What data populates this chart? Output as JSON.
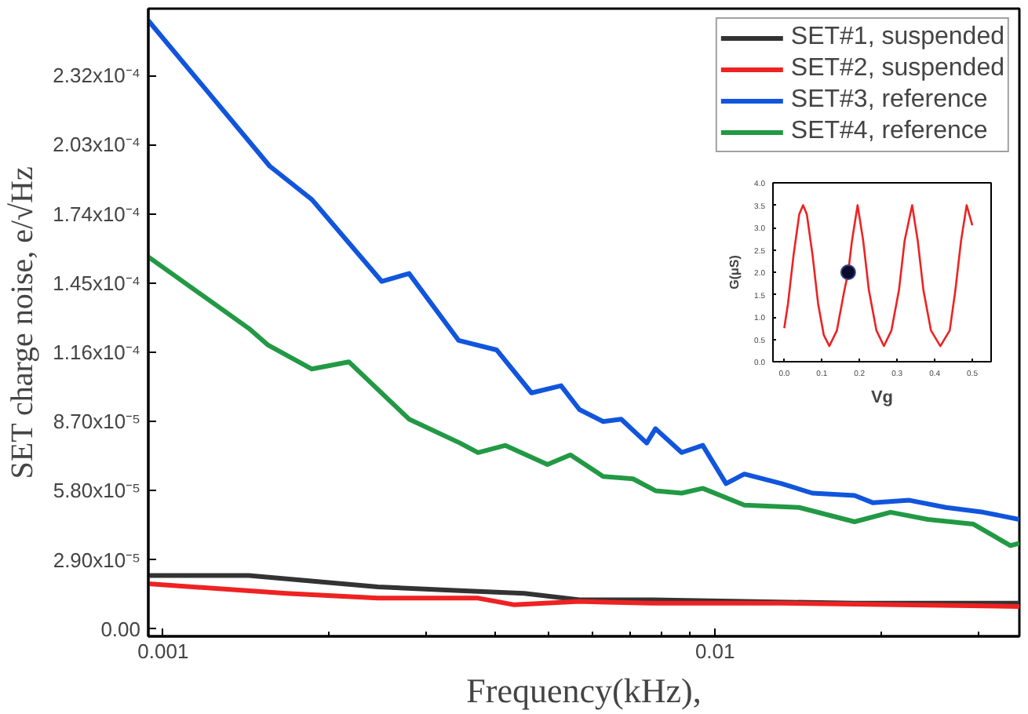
{
  "chart_data": [
    {
      "type": "line",
      "xlabel": "Frequency(kHz),",
      "ylabel": "SET charge noise, e/√Hz",
      "log": "x",
      "xlim": [
        0.00094,
        0.0356
      ],
      "ylim": [
        -3e-06,
        0.00026
      ],
      "xticks": [
        0.001,
        0.01
      ],
      "yticks": [
        {
          "value": 0,
          "label": "0.00"
        },
        {
          "value": 2.9e-05,
          "label": "2.90x10⁻⁵"
        },
        {
          "value": 5.8e-05,
          "label": "5.80x10⁻⁵"
        },
        {
          "value": 8.7e-05,
          "label": "8.70x10⁻⁵"
        },
        {
          "value": 0.000116,
          "label": "1.16x10⁻⁴"
        },
        {
          "value": 0.000145,
          "label": "1.45x10⁻⁴"
        },
        {
          "value": 0.000174,
          "label": "1.74x10⁻⁴"
        },
        {
          "value": 0.000203,
          "label": "2.03x10⁻⁴"
        },
        {
          "value": 0.000232,
          "label": "2.32x10⁻⁴"
        }
      ],
      "grid": false,
      "legend": "top right",
      "marker": "none",
      "line_style": "solid",
      "series": [
        {
          "name": "SET#1, suspended",
          "color": "#333333",
          "x": [
            0.00094,
            0.00143,
            0.00245,
            0.00332,
            0.00451,
            0.00568,
            0.0077,
            0.0113,
            0.0179,
            0.0356
          ],
          "values": [
            2.25e-05,
            2.25e-05,
            1.77e-05,
            1.63e-05,
            1.5e-05,
            1.23e-05,
            1.23e-05,
            1.16e-05,
            1.09e-05,
            1.09e-05
          ]
        },
        {
          "name": "SET#2, suspended",
          "color": "#ee2222",
          "x": [
            0.00094,
            0.00167,
            0.00245,
            0.00372,
            0.00433,
            0.00568,
            0.0077,
            0.0132,
            0.0356
          ],
          "values": [
            1.9e-05,
            1.5e-05,
            1.3e-05,
            1.3e-05,
            1.02e-05,
            1.16e-05,
            1.09e-05,
            1.09e-05,
            9.5e-06
          ]
        },
        {
          "name": "SET#3, reference",
          "color": "#1155dd",
          "x": [
            0.00094,
            0.00156,
            0.00186,
            0.00249,
            0.00279,
            0.00343,
            0.00402,
            0.00465,
            0.00526,
            0.00568,
            0.00627,
            0.00676,
            0.00752,
            0.0078,
            0.0087,
            0.0095,
            0.01047,
            0.0113,
            0.0132,
            0.015,
            0.0179,
            0.0193,
            0.0225,
            0.0262,
            0.0306,
            0.0356
          ],
          "values": [
            0.000255,
            0.000194,
            0.00018,
            0.0001457,
            0.000149,
            0.000121,
            0.000117,
            9.9e-05,
            0.000102,
            9.2e-05,
            8.7e-05,
            8.8e-05,
            7.8e-05,
            8.4e-05,
            7.4e-05,
            7.7e-05,
            6.1e-05,
            6.5e-05,
            6.1e-05,
            5.7e-05,
            5.6e-05,
            5.3e-05,
            5.4e-05,
            5.1e-05,
            4.9e-05,
            4.6e-05
          ]
        },
        {
          "name": "SET#4, reference",
          "color": "#229944",
          "x": [
            0.00094,
            0.00143,
            0.00155,
            0.00186,
            0.00217,
            0.00279,
            0.00345,
            0.00372,
            0.00417,
            0.00497,
            0.00547,
            0.00627,
            0.0071,
            0.0078,
            0.0087,
            0.0095,
            0.0113,
            0.0142,
            0.0179,
            0.0208,
            0.0243,
            0.0294,
            0.0343,
            0.0356
          ],
          "values": [
            0.000156,
            0.000126,
            0.000119,
            0.000109,
            0.000112,
            8.8e-05,
            7.8e-05,
            7.4e-05,
            7.7e-05,
            6.9e-05,
            7.3e-05,
            6.4e-05,
            6.3e-05,
            5.8e-05,
            5.7e-05,
            5.9e-05,
            5.2e-05,
            5.1e-05,
            4.5e-05,
            4.9e-05,
            4.6e-05,
            4.4e-05,
            3.5e-05,
            3.6e-05
          ]
        }
      ]
    },
    {
      "type": "line",
      "xlabel": "Vg",
      "ylabel": "G(μS)",
      "xlim": [
        -0.03,
        0.55
      ],
      "ylim": [
        0,
        4
      ],
      "xticks": [
        {
          "value": 0,
          "label": "0.0"
        },
        0.1,
        0.2,
        0.3,
        0.4,
        0.5
      ],
      "yticks": [
        {
          "value": 0,
          "label": "0.0"
        },
        0.5,
        {
          "value": 1,
          "label": "1.0"
        },
        1.5,
        {
          "value": 2,
          "label": "2.0"
        },
        2.5,
        {
          "value": 3,
          "label": "3.0"
        },
        3.5,
        {
          "value": 4,
          "label": "4.0"
        }
      ],
      "grid": false,
      "series": [
        {
          "type": "line",
          "color": "#ee2222",
          "x": [
            0,
            0.01,
            0.025,
            0.04,
            0.05,
            0.06,
            0.075,
            0.09,
            0.105,
            0.12,
            0.14,
            0.16,
            0.17,
            0.18,
            0.195,
            0.21,
            0.225,
            0.245,
            0.265,
            0.285,
            0.305,
            0.32,
            0.34,
            0.355,
            0.37,
            0.39,
            0.415,
            0.44,
            0.455,
            0.47,
            0.485,
            0.5
          ],
          "values": [
            0.75,
            1.3,
            2.4,
            3.3,
            3.5,
            3.3,
            2.4,
            1.3,
            0.6,
            0.35,
            0.7,
            1.6,
            2.0,
            2.7,
            3.5,
            2.7,
            1.6,
            0.7,
            0.35,
            0.7,
            1.6,
            2.7,
            3.5,
            2.7,
            1.6,
            0.7,
            0.35,
            0.7,
            1.6,
            2.7,
            3.5,
            3.05
          ]
        },
        {
          "type": "scatter",
          "marker": "circle",
          "color": "#0a0a2a",
          "x": [
            0.17
          ],
          "values": [
            2.0
          ]
        }
      ]
    }
  ]
}
